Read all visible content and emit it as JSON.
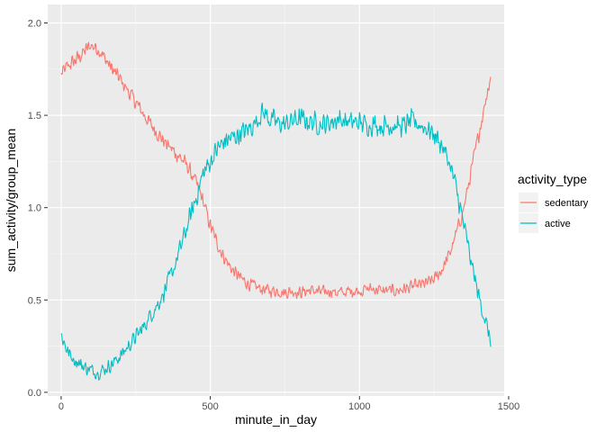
{
  "chart_data": {
    "type": "line",
    "xlabel": "minute_in_day",
    "ylabel": "sum_activity/group_mean",
    "xlim": [
      -45,
      1485
    ],
    "ylim": [
      -0.02,
      2.1
    ],
    "x_ticks": [
      0,
      500,
      1000,
      1500
    ],
    "x_tick_labels": [
      "0",
      "500",
      "1000",
      "1500"
    ],
    "y_ticks": [
      0.0,
      0.5,
      1.0,
      1.5,
      2.0
    ],
    "y_tick_labels": [
      "0.0",
      "0.5",
      "1.0",
      "1.5",
      "2.0"
    ],
    "grid": true,
    "legend": {
      "title": "activity_type",
      "placement": "right"
    },
    "series": [
      {
        "name": "sedentary",
        "color": "#F8766D",
        "x": [
          0,
          25,
          50,
          75,
          100,
          125,
          150,
          175,
          200,
          225,
          250,
          275,
          300,
          325,
          350,
          375,
          400,
          425,
          450,
          475,
          500,
          525,
          550,
          575,
          600,
          625,
          650,
          675,
          700,
          725,
          750,
          775,
          800,
          825,
          850,
          875,
          900,
          925,
          950,
          975,
          1000,
          1025,
          1050,
          1075,
          1100,
          1125,
          1150,
          1175,
          1200,
          1225,
          1250,
          1275,
          1300,
          1325,
          1350,
          1375,
          1400,
          1425,
          1440
        ],
        "values": [
          1.72,
          1.77,
          1.8,
          1.84,
          1.88,
          1.86,
          1.8,
          1.74,
          1.69,
          1.63,
          1.57,
          1.51,
          1.45,
          1.4,
          1.35,
          1.31,
          1.27,
          1.22,
          1.14,
          1.04,
          0.9,
          0.8,
          0.72,
          0.66,
          0.62,
          0.59,
          0.57,
          0.56,
          0.55,
          0.55,
          0.54,
          0.55,
          0.54,
          0.55,
          0.55,
          0.54,
          0.55,
          0.54,
          0.54,
          0.55,
          0.55,
          0.56,
          0.56,
          0.55,
          0.55,
          0.55,
          0.56,
          0.57,
          0.58,
          0.59,
          0.61,
          0.66,
          0.74,
          0.86,
          1.0,
          1.2,
          1.4,
          1.6,
          1.72
        ],
        "noise": 0.05
      },
      {
        "name": "active",
        "color": "#00BFC4",
        "x": [
          0,
          25,
          50,
          75,
          100,
          125,
          150,
          175,
          200,
          225,
          250,
          275,
          300,
          325,
          350,
          375,
          400,
          425,
          450,
          475,
          500,
          525,
          550,
          575,
          600,
          625,
          650,
          675,
          700,
          725,
          750,
          775,
          800,
          825,
          850,
          875,
          900,
          925,
          950,
          975,
          1000,
          1025,
          1050,
          1075,
          1100,
          1125,
          1150,
          1175,
          1200,
          1225,
          1250,
          1275,
          1300,
          1325,
          1350,
          1375,
          1400,
          1425,
          1440
        ],
        "values": [
          0.31,
          0.21,
          0.17,
          0.14,
          0.12,
          0.11,
          0.13,
          0.16,
          0.2,
          0.25,
          0.3,
          0.35,
          0.42,
          0.48,
          0.56,
          0.66,
          0.78,
          0.91,
          1.04,
          1.18,
          1.25,
          1.32,
          1.36,
          1.38,
          1.4,
          1.42,
          1.46,
          1.52,
          1.48,
          1.46,
          1.45,
          1.47,
          1.48,
          1.47,
          1.46,
          1.45,
          1.46,
          1.48,
          1.47,
          1.46,
          1.46,
          1.45,
          1.45,
          1.44,
          1.45,
          1.44,
          1.44,
          1.47,
          1.45,
          1.43,
          1.4,
          1.34,
          1.25,
          1.1,
          0.9,
          0.7,
          0.52,
          0.37,
          0.27
        ],
        "noise": 0.07
      }
    ]
  }
}
